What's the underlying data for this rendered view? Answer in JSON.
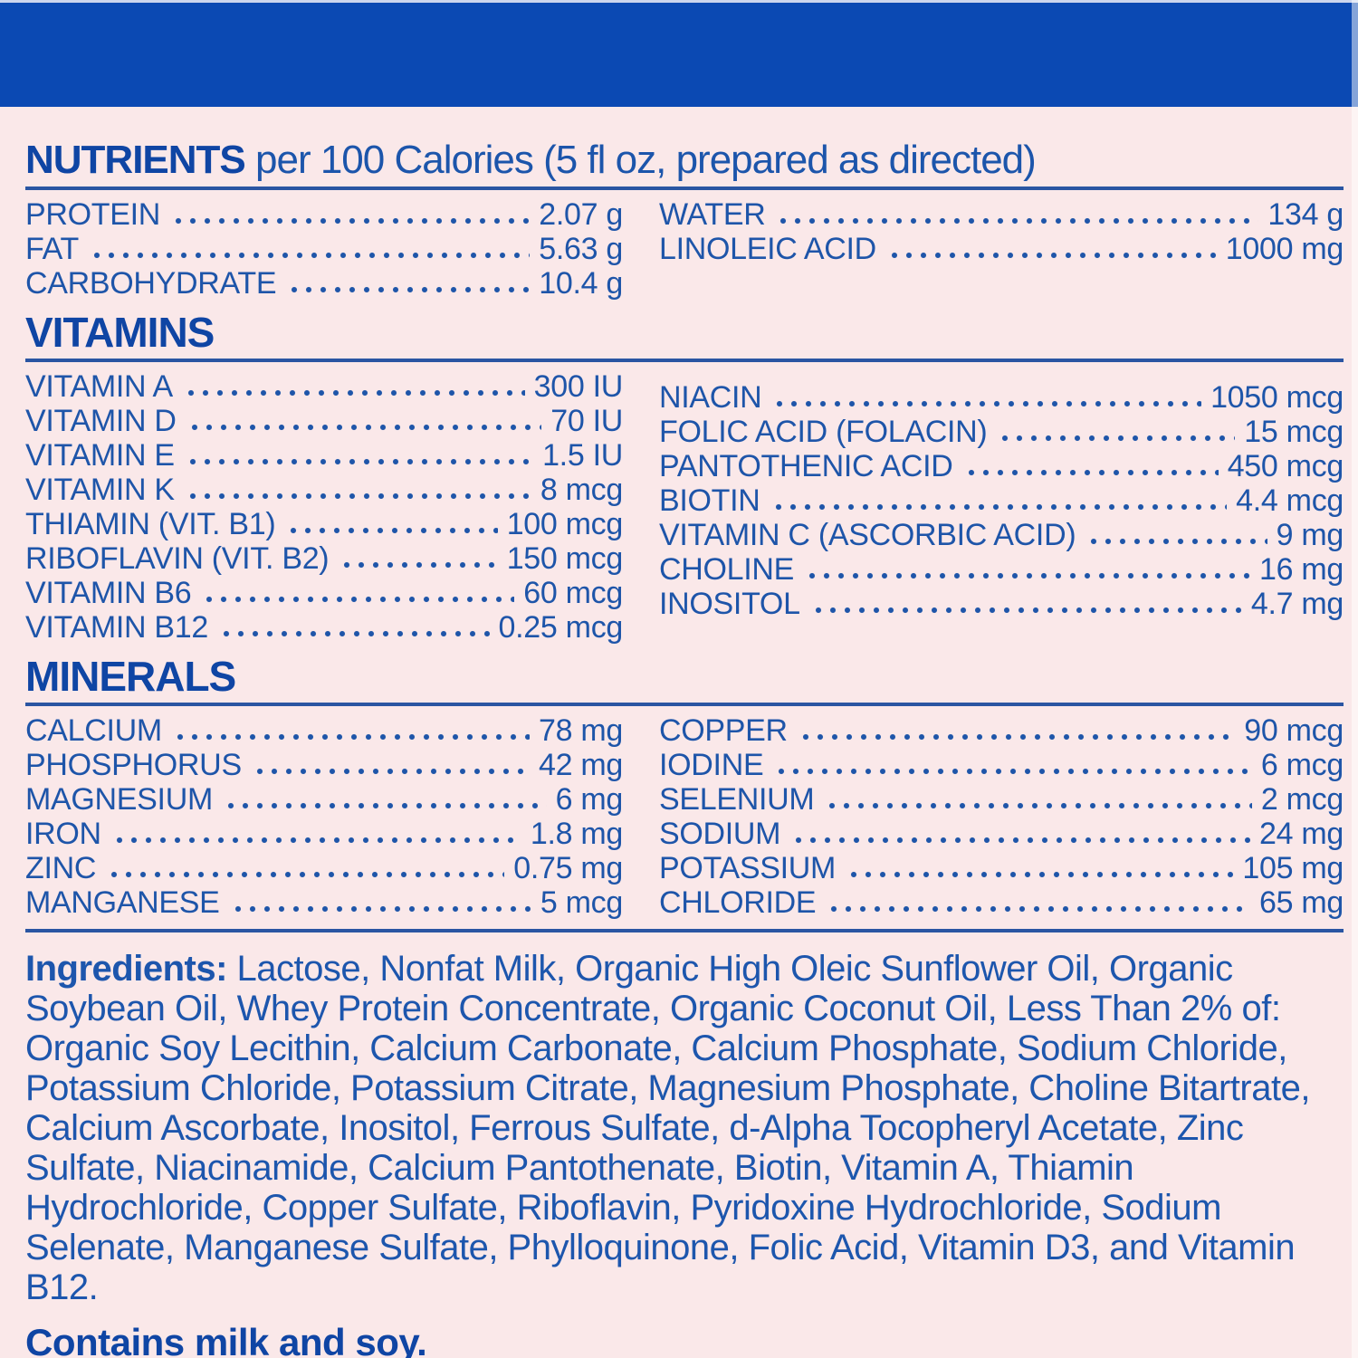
{
  "colors": {
    "top_bar": "#0b49b3",
    "background": "#fae8e9",
    "text_blue": "#1e55a9",
    "heading_navy": "#0f45a4"
  },
  "nutrients": {
    "heading_bold": "NUTRIENTS",
    "heading_rest": " per 100 Calories (5 fl oz, prepared as directed)",
    "left": [
      {
        "label": "PROTEIN",
        "value": "2.07 g"
      },
      {
        "label": "FAT",
        "value": "5.63 g"
      },
      {
        "label": "CARBOHYDRATE",
        "value": "10.4 g"
      }
    ],
    "right": [
      {
        "label": "WATER",
        "value": "134 g"
      },
      {
        "label": "LINOLEIC ACID",
        "value": "1000 mg"
      }
    ]
  },
  "vitamins": {
    "heading": "VITAMINS",
    "left": [
      {
        "label": "VITAMIN A",
        "value": "300 IU"
      },
      {
        "label": "VITAMIN D",
        "value": "70 IU"
      },
      {
        "label": "VITAMIN E",
        "value": "1.5 IU"
      },
      {
        "label": "VITAMIN K",
        "value": "8 mcg"
      },
      {
        "label": "THIAMIN (VIT. B1)",
        "value": "100 mcg"
      },
      {
        "label": "RIBOFLAVIN (VIT. B2)",
        "value": "150 mcg"
      },
      {
        "label": "VITAMIN B6",
        "value": "60 mcg"
      },
      {
        "label": "VITAMIN B12",
        "value": "0.25 mcg"
      }
    ],
    "right": [
      {
        "label": "NIACIN",
        "value": "1050 mcg"
      },
      {
        "label": "FOLIC ACID (FOLACIN)",
        "value": "15 mcg"
      },
      {
        "label": "PANTOTHENIC ACID",
        "value": "450 mcg"
      },
      {
        "label": "BIOTIN",
        "value": "4.4 mcg"
      },
      {
        "label": "VITAMIN C (ASCORBIC ACID)",
        "value": "9 mg"
      },
      {
        "label": "CHOLINE",
        "value": "16 mg"
      },
      {
        "label": "INOSITOL",
        "value": "4.7 mg"
      }
    ]
  },
  "minerals": {
    "heading": "MINERALS",
    "left": [
      {
        "label": "CALCIUM",
        "value": "78 mg"
      },
      {
        "label": "PHOSPHORUS",
        "value": "42 mg"
      },
      {
        "label": "MAGNESIUM",
        "value": "6 mg"
      },
      {
        "label": "IRON",
        "value": "1.8 mg"
      },
      {
        "label": "ZINC",
        "value": "0.75 mg"
      },
      {
        "label": "MANGANESE",
        "value": "5 mcg"
      }
    ],
    "right": [
      {
        "label": "COPPER",
        "value": "90 mcg"
      },
      {
        "label": "IODINE",
        "value": "6 mcg"
      },
      {
        "label": "SELENIUM",
        "value": "2 mcg"
      },
      {
        "label": "SODIUM",
        "value": "24 mg"
      },
      {
        "label": "POTASSIUM",
        "value": "105 mg"
      },
      {
        "label": "CHLORIDE",
        "value": "65 mg"
      }
    ]
  },
  "ingredients": {
    "label": "Ingredients:",
    "text": " Lactose, Nonfat Milk, Organic High Oleic Sunflower Oil, Organic Soybean Oil, Whey Protein Concentrate, Organic Coconut Oil, Less Than 2% of: Organic Soy Lecithin, Calcium Carbonate, Calcium Phosphate, Sodium Chloride, Potassium Chloride, Potassium Citrate, Magnesium Phosphate, Choline Bitartrate, Calcium Ascorbate, Inositol, Ferrous Sulfate, d-Alpha Tocopheryl Acetate, Zinc Sulfate, Niacinamide, Calcium Pantothenate, Biotin, Vitamin A, Thiamin Hydrochloride, Copper Sulfate, Riboflavin, Pyridoxine Hydrochloride, Sodium Selenate, Manganese Sulfate, Phylloquinone, Folic Acid, Vitamin D3, and Vitamin B12."
  },
  "contains": "Contains milk and soy."
}
